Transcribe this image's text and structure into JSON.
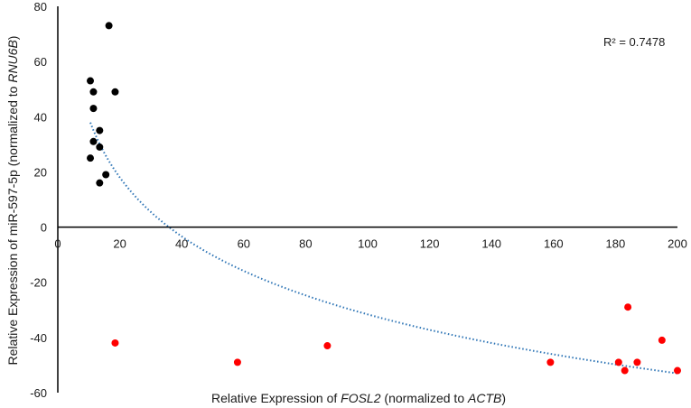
{
  "chart_data": {
    "type": "scatter",
    "title": "",
    "xlabel_parts": [
      {
        "text": "Relative Expression of ",
        "italic": false
      },
      {
        "text": "FOSL2",
        "italic": true
      },
      {
        "text": " (normalized to ",
        "italic": false
      },
      {
        "text": "ACTB",
        "italic": true
      },
      {
        "text": ")",
        "italic": false
      }
    ],
    "ylabel_parts": [
      {
        "text": "Relative Expression of miR-597-5p (normalized to ",
        "italic": false
      },
      {
        "text": "RNU6B",
        "italic": true
      },
      {
        "text": ")",
        "italic": false
      }
    ],
    "xlim": [
      0,
      200
    ],
    "ylim": [
      -60,
      80
    ],
    "xticks": [
      0,
      20,
      40,
      60,
      80,
      100,
      120,
      140,
      160,
      180,
      200
    ],
    "yticks": [
      -60,
      -40,
      -20,
      0,
      20,
      40,
      60,
      80
    ],
    "grid": false,
    "series": [
      {
        "color": "#000000",
        "points": [
          {
            "x": 16.5,
            "y": 73
          },
          {
            "x": 10.5,
            "y": 53
          },
          {
            "x": 11.5,
            "y": 49
          },
          {
            "x": 18.5,
            "y": 49
          },
          {
            "x": 11.5,
            "y": 43
          },
          {
            "x": 13.5,
            "y": 35
          },
          {
            "x": 11.5,
            "y": 31
          },
          {
            "x": 13.5,
            "y": 29
          },
          {
            "x": 10.5,
            "y": 25
          },
          {
            "x": 15.5,
            "y": 19
          },
          {
            "x": 13.5,
            "y": 16
          }
        ]
      },
      {
        "color": "#ff0000",
        "points": [
          {
            "x": 18.5,
            "y": -42
          },
          {
            "x": 58,
            "y": -49
          },
          {
            "x": 87,
            "y": -43
          },
          {
            "x": 159,
            "y": -49
          },
          {
            "x": 181,
            "y": -49
          },
          {
            "x": 183,
            "y": -52
          },
          {
            "x": 184,
            "y": -29
          },
          {
            "x": 187,
            "y": -49
          },
          {
            "x": 195,
            "y": -41
          },
          {
            "x": 200,
            "y": -52
          }
        ]
      }
    ],
    "trendline": {
      "type": "logarithmic",
      "style": "dotted",
      "color": "#2e75b6",
      "x_range": [
        10.5,
        200
      ],
      "annotation": "R² = 0.7478"
    }
  }
}
